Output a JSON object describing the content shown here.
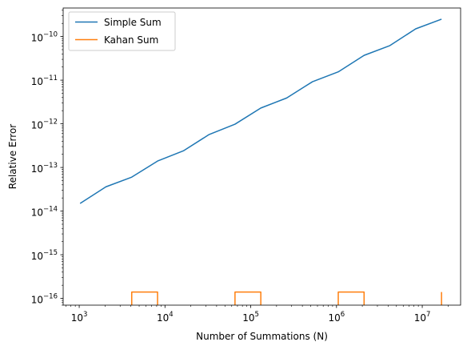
{
  "chart_data": {
    "type": "line",
    "title": "",
    "xlabel": "Number of Summations (N)",
    "ylabel": "Relative Error",
    "xscale": "log",
    "yscale": "log",
    "xlim": [
      650,
      28000000
    ],
    "ylim": [
      7e-17,
      4.5e-10
    ],
    "xticks": [
      {
        "value": 1000,
        "base": "10",
        "exp": "3"
      },
      {
        "value": 10000,
        "base": "10",
        "exp": "4"
      },
      {
        "value": 100000,
        "base": "10",
        "exp": "5"
      },
      {
        "value": 1000000,
        "base": "10",
        "exp": "6"
      },
      {
        "value": 10000000,
        "base": "10",
        "exp": "7"
      }
    ],
    "yticks": [
      {
        "value": 1e-16,
        "base": "10",
        "exp": "−16"
      },
      {
        "value": 1e-15,
        "base": "10",
        "exp": "−15"
      },
      {
        "value": 1e-14,
        "base": "10",
        "exp": "−14"
      },
      {
        "value": 1e-13,
        "base": "10",
        "exp": "−13"
      },
      {
        "value": 1e-12,
        "base": "10",
        "exp": "−12"
      },
      {
        "value": 1e-11,
        "base": "10",
        "exp": "−11"
      },
      {
        "value": 1e-10,
        "base": "10",
        "exp": "−10"
      }
    ],
    "grid": false,
    "legend": {
      "position": "top-left"
    },
    "series": [
      {
        "name": "Simple Sum",
        "color": "#1f77b4",
        "points": [
          [
            1024,
            1.5e-14
          ],
          [
            2048,
            3.6e-14
          ],
          [
            4096,
            6e-14
          ],
          [
            8192,
            1.4e-13
          ],
          [
            16384,
            2.4e-13
          ],
          [
            32768,
            5.7e-13
          ],
          [
            65536,
            9.8e-13
          ],
          [
            131072,
            2.3e-12
          ],
          [
            262144,
            3.9e-12
          ],
          [
            524288,
            9.2e-12
          ],
          [
            1048576,
            1.55e-11
          ],
          [
            2097152,
            3.7e-11
          ],
          [
            4194304,
            6.2e-11
          ],
          [
            8388608,
            1.5e-10
          ],
          [
            16777216,
            2.5e-10
          ]
        ]
      },
      {
        "name": "Kahan Sum",
        "color": "#ff7f0e",
        "points": [
          [
            1024,
            0
          ],
          [
            2048,
            0
          ],
          [
            4096,
            0
          ],
          [
            4096,
            1.4e-16
          ],
          [
            8192,
            1.4e-16
          ],
          [
            8192,
            0
          ],
          [
            16384,
            0
          ],
          [
            32768,
            0
          ],
          [
            65536,
            0
          ],
          [
            65536,
            1.4e-16
          ],
          [
            131072,
            1.4e-16
          ],
          [
            131072,
            0
          ],
          [
            262144,
            0
          ],
          [
            524288,
            0
          ],
          [
            1048576,
            0
          ],
          [
            1048576,
            1.4e-16
          ],
          [
            2097152,
            1.4e-16
          ],
          [
            2097152,
            0
          ],
          [
            4194304,
            0
          ],
          [
            8388608,
            0
          ],
          [
            16777216,
            0
          ],
          [
            16777216,
            1.4e-16
          ]
        ]
      }
    ]
  }
}
